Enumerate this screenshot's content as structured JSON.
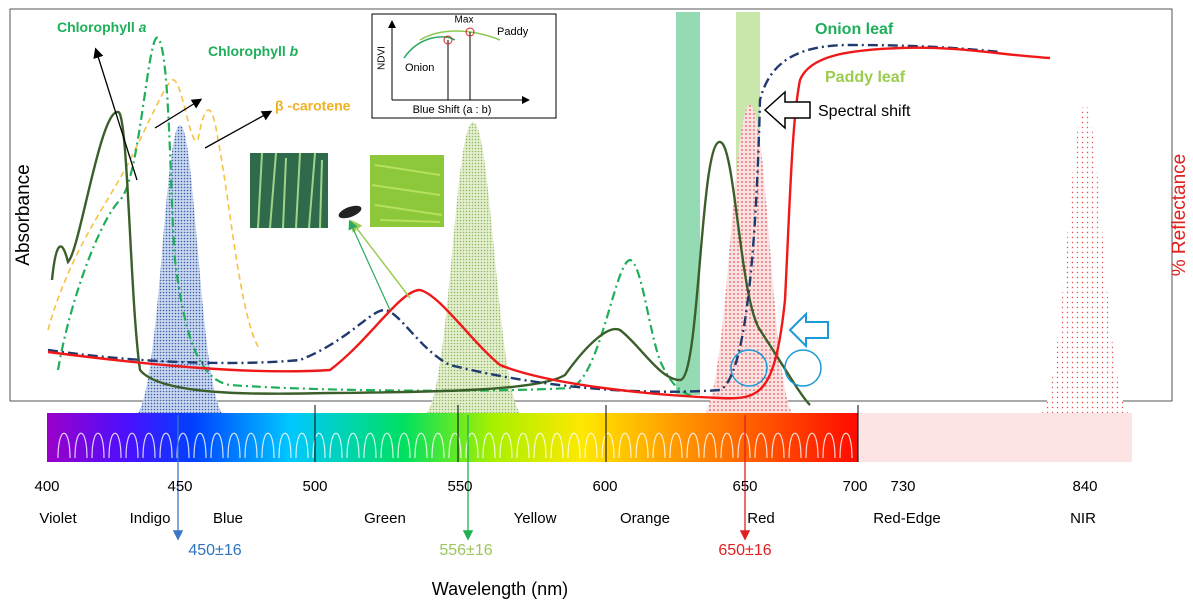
{
  "curves": {
    "chlorophyll_a": {
      "name": "Chlorophyll",
      "italic": "a"
    },
    "chlorophyll_b": {
      "name": "Chlorophyll",
      "italic": "b"
    },
    "beta_carotene": "β -carotene",
    "onion_leaf": "Onion leaf",
    "paddy_leaf": "Paddy leaf"
  },
  "spectral_shift": "Spectral shift",
  "y_axis_left": "Absorbance",
  "y_axis_right": "% Reflectance",
  "x_axis": "Wavelength (nm)",
  "wavelength_ticks": [
    400,
    450,
    500,
    550,
    600,
    650,
    700,
    730,
    840
  ],
  "bands": [
    "Violet",
    "Indigo",
    "Blue",
    "Green",
    "Yellow",
    "Orange",
    "Red",
    "Red-Edge",
    "NIR"
  ],
  "sensor_bands": [
    "450±16",
    "556±16",
    "650±16"
  ],
  "inset": {
    "y_label": "NDVI",
    "x_label": "Blue Shift (a : b)",
    "max": "Max",
    "onion": "Onion",
    "paddy": "Paddy"
  }
}
